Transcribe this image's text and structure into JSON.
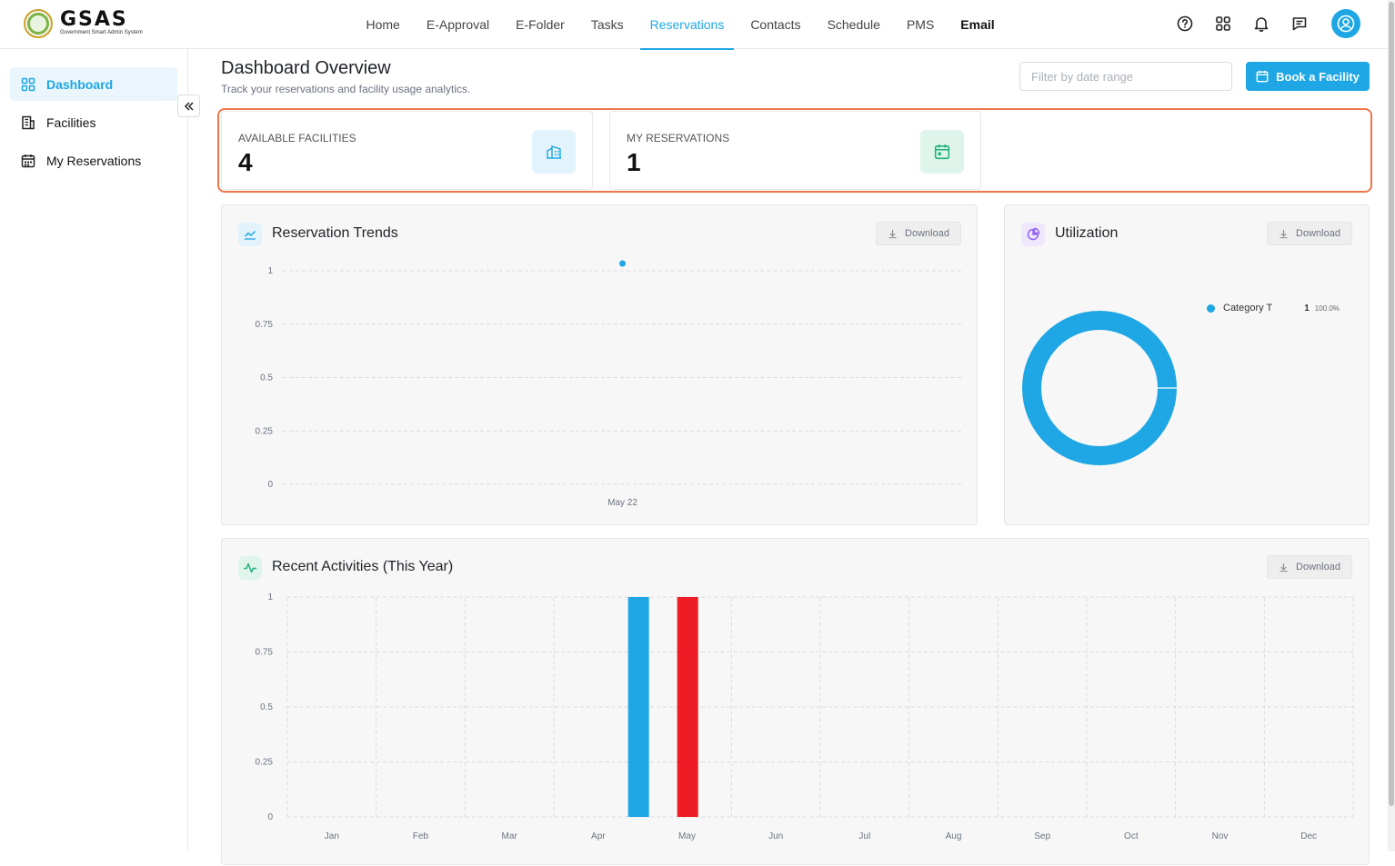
{
  "app": {
    "logo_title": "GSAS",
    "logo_subtitle": "Government Smart Admin System"
  },
  "nav": {
    "items": [
      {
        "label": "Home",
        "active": false
      },
      {
        "label": "E-Approval",
        "active": false
      },
      {
        "label": "E-Folder",
        "active": false
      },
      {
        "label": "Tasks",
        "active": false
      },
      {
        "label": "Reservations",
        "active": true
      },
      {
        "label": "Contacts",
        "active": false
      },
      {
        "label": "Schedule",
        "active": false
      },
      {
        "label": "PMS",
        "active": false
      },
      {
        "label": "Email",
        "active": false
      }
    ],
    "icons": [
      "help-icon",
      "apps-grid-icon",
      "bell-icon",
      "chat-icon",
      "user-avatar-icon"
    ]
  },
  "sidebar": {
    "items": [
      {
        "label": "Dashboard",
        "icon": "dashboard-grid-icon",
        "active": true
      },
      {
        "label": "Facilities",
        "icon": "building-icon",
        "active": false
      },
      {
        "label": "My Reservations",
        "icon": "calendar-icon",
        "active": false
      }
    ]
  },
  "header": {
    "title": "Dashboard Overview",
    "subtitle": "Track your reservations and facility usage analytics.",
    "date_filter_placeholder": "Filter by date range",
    "book_button": "Book a Facility"
  },
  "stats": [
    {
      "label": "AVAILABLE FACILITIES",
      "value": "4",
      "icon": "building-icon"
    },
    {
      "label": "MY RESERVATIONS",
      "value": "1",
      "icon": "calendar-icon"
    }
  ],
  "colors": {
    "accent": "#1ea7e4",
    "highlight_border": "#f0764a",
    "red_bar": "#ee1c25",
    "green_icon": "#22b07d",
    "purple_icon": "#8b5cf6"
  },
  "panels": {
    "trends": {
      "title": "Reservation Trends",
      "download": "Download"
    },
    "utilization": {
      "title": "Utilization",
      "download": "Download"
    },
    "activities": {
      "title": "Recent Activities (This Year)",
      "download": "Download"
    }
  },
  "chart_data": [
    {
      "type": "line",
      "x": [
        "May 22"
      ],
      "series": [
        {
          "values": [
            1
          ]
        }
      ],
      "ylim": [
        0,
        1
      ],
      "yticks": [
        "0",
        "0.25",
        "0.5",
        "0.75",
        "1"
      ],
      "grid": true
    },
    {
      "type": "pie",
      "donut": true,
      "slices": [
        {
          "label": "Category T",
          "value": 1,
          "percent": "100.0%"
        }
      ],
      "legend": "top-right"
    },
    {
      "type": "bar",
      "categories": [
        "Jan",
        "Feb",
        "Mar",
        "Apr",
        "May",
        "Jun",
        "Jul",
        "Aug",
        "Sep",
        "Oct",
        "Nov",
        "Dec"
      ],
      "series": [
        {
          "color": "#1ea7e4",
          "values": [
            0,
            0,
            0,
            0,
            1,
            0,
            0,
            0,
            0,
            0,
            0,
            0
          ]
        },
        {
          "color": "#ee1c25",
          "values": [
            0,
            0,
            0,
            0,
            1,
            0,
            0,
            0,
            0,
            0,
            0,
            0
          ]
        }
      ],
      "ylim": [
        0,
        1
      ],
      "yticks": [
        "0",
        "0.25",
        "0.5",
        "0.75",
        "1"
      ],
      "grid": true
    }
  ]
}
